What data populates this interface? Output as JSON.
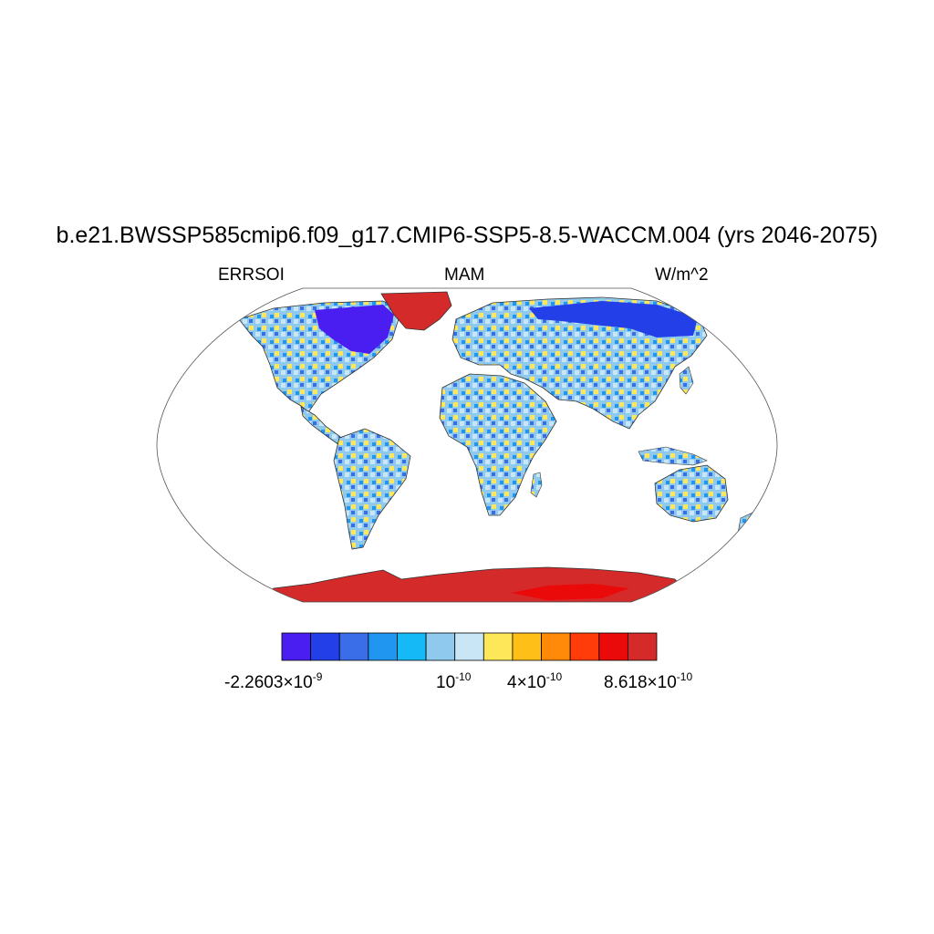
{
  "title": "b.e21.BWSSP585cmip6.f09_g17.CMIP6-SSP5-8.5-WACCM.004 (yrs 2046-2075)",
  "left_label": "ERRSOI",
  "center_label": "MAM",
  "right_label": "W/m^2",
  "colorbar": {
    "colors": [
      "#4a1ef0",
      "#2340e8",
      "#3a6ee8",
      "#2196f0",
      "#14b9f5",
      "#8fcaee",
      "#c8e6f5",
      "#ffe75a",
      "#ffbf19",
      "#ff8a0a",
      "#ff3c0a",
      "#eb0a0a",
      "#d52a2a"
    ],
    "labels": [
      {
        "mantissa": "-2.2603",
        "times": "×",
        "base": "10",
        "exp": "-9"
      },
      {
        "mantissa": "",
        "times": "",
        "base": "10",
        "exp": "-10"
      },
      {
        "mantissa": "4",
        "times": "×",
        "base": "10",
        "exp": "-10"
      },
      {
        "mantissa": "8.618",
        "times": "×",
        "base": "10",
        "exp": "-10"
      }
    ]
  },
  "map": {
    "projection": "robinson",
    "land_color": "#8fcaee",
    "ocean_color": "#ffffff",
    "greenland_color": "#d52a2a",
    "antarctica_color": "#d52a2a"
  }
}
